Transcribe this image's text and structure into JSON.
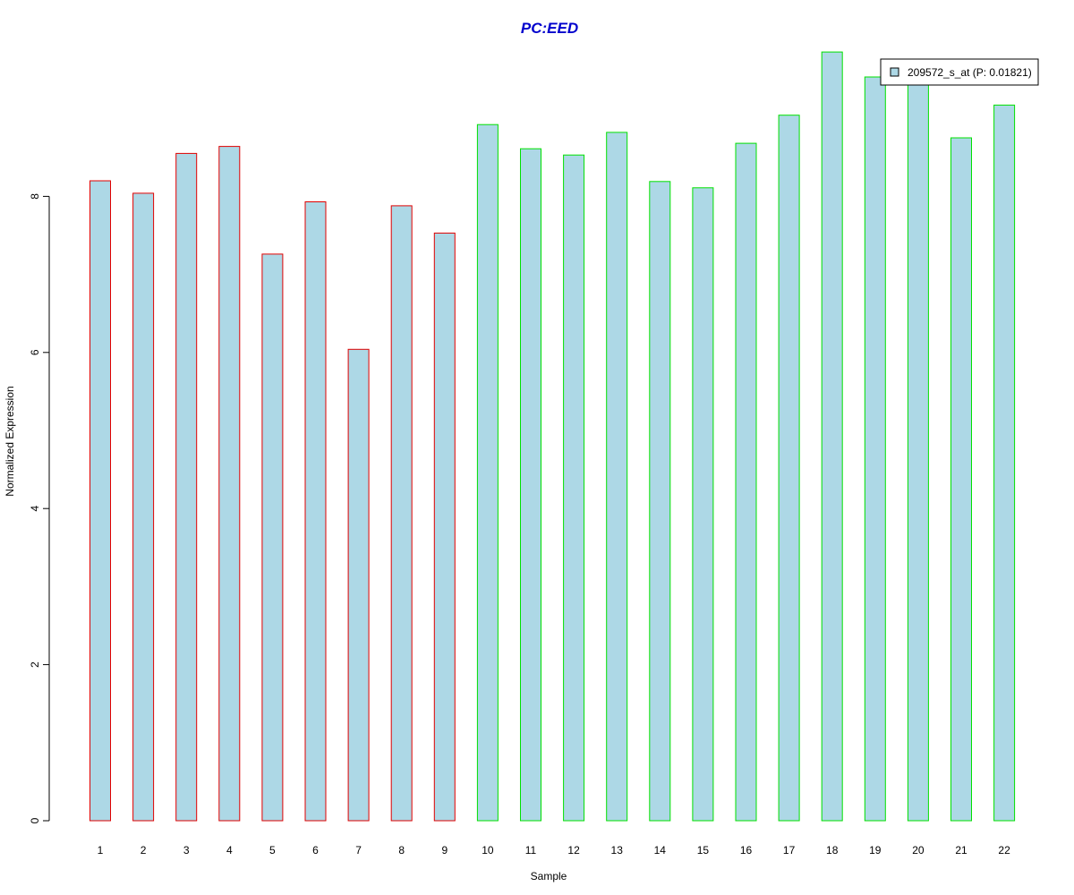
{
  "chart_data": {
    "type": "bar",
    "title": "PC:EED",
    "xlabel": "Sample",
    "ylabel": "Normalized Expression",
    "ylim": [
      0,
      10
    ],
    "yticks": [
      0,
      2,
      4,
      6,
      8
    ],
    "categories": [
      "1",
      "2",
      "3",
      "4",
      "5",
      "6",
      "7",
      "8",
      "9",
      "10",
      "11",
      "12",
      "13",
      "14",
      "15",
      "16",
      "17",
      "18",
      "19",
      "20",
      "21",
      "22"
    ],
    "series": [
      {
        "name": "209572_s_at (P: 0.01821)",
        "values": [
          8.2,
          8.04,
          8.55,
          8.64,
          7.26,
          7.93,
          6.04,
          7.88,
          7.53,
          8.92,
          8.61,
          8.53,
          8.82,
          8.19,
          8.11,
          8.68,
          9.04,
          9.85,
          9.53,
          9.48,
          8.75,
          9.17
        ]
      }
    ],
    "group_border_colors": [
      "#e00000",
      "#e00000",
      "#e00000",
      "#e00000",
      "#e00000",
      "#e00000",
      "#e00000",
      "#e00000",
      "#e00000",
      "#00e000",
      "#00e000",
      "#00e000",
      "#00e000",
      "#00e000",
      "#00e000",
      "#00e000",
      "#00e000",
      "#00e000",
      "#00e000",
      "#00e000",
      "#00e000",
      "#00e000"
    ],
    "fill_color": "#add8e6",
    "title_color": "#0000cd",
    "legend_position": "top-right",
    "grid": false
  }
}
